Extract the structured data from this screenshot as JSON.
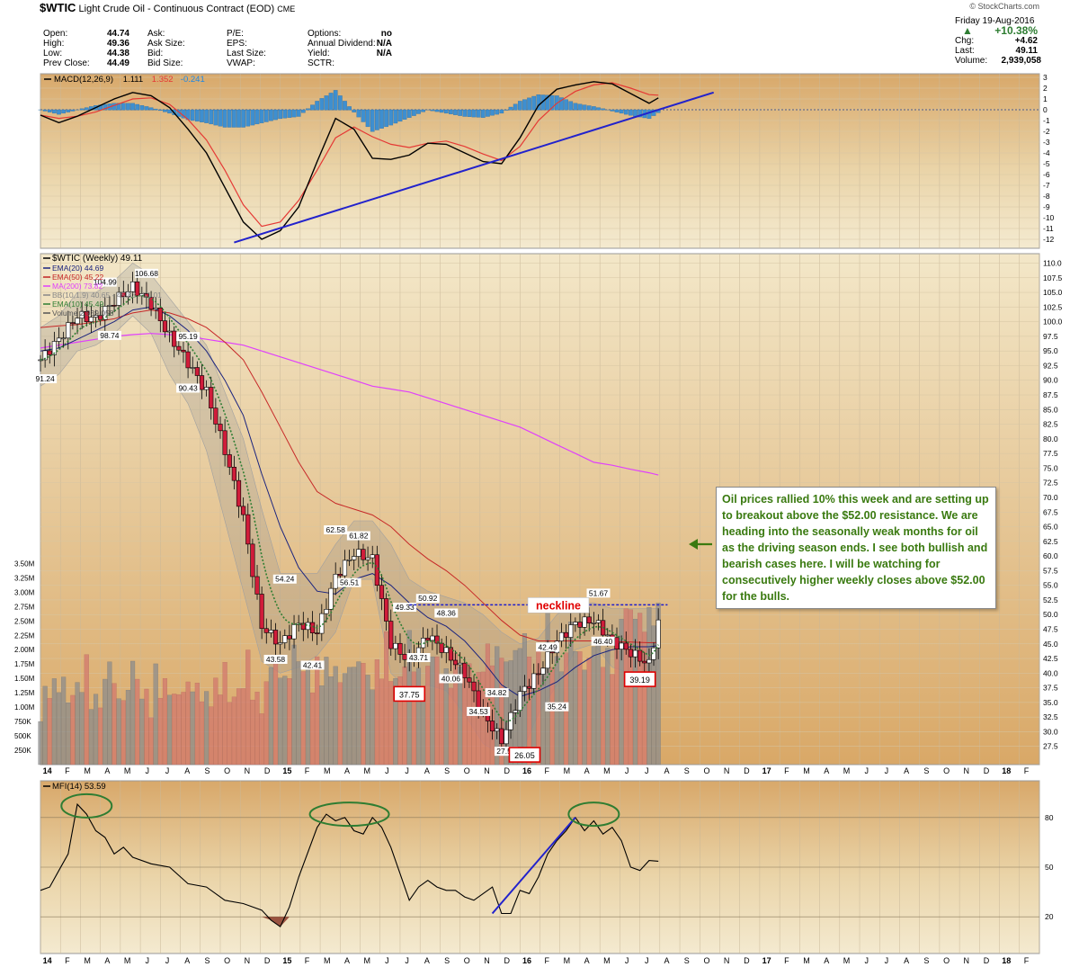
{
  "header": {
    "symbol": "$WTIC",
    "name": "Light Crude Oil - Continuous Contract (EOD)",
    "exchange": "CME",
    "watermark": "© StockCharts.com"
  },
  "quote_left": [
    {
      "label": "Open:",
      "value": "44.74"
    },
    {
      "label": "High:",
      "value": "49.36"
    },
    {
      "label": "Low:",
      "value": "44.38"
    },
    {
      "label": "Prev Close:",
      "value": "44.49"
    }
  ],
  "quote_mid": [
    {
      "label": "Ask:",
      "value": ""
    },
    {
      "label": "Ask Size:",
      "value": ""
    },
    {
      "label": "Bid:",
      "value": ""
    },
    {
      "label": "Bid Size:",
      "value": ""
    }
  ],
  "quote_mid2": [
    {
      "label": "P/E:",
      "value": ""
    },
    {
      "label": "EPS:",
      "value": ""
    },
    {
      "label": "Last Size:",
      "value": ""
    },
    {
      "label": "VWAP:",
      "value": ""
    }
  ],
  "quote_right": [
    {
      "label": "Options:",
      "value": "no"
    },
    {
      "label": "Annual Dividend:",
      "value": "N/A"
    },
    {
      "label": "Yield:",
      "value": "N/A"
    },
    {
      "label": "SCTR:",
      "value": ""
    }
  ],
  "summary": {
    "date": "Friday 19-Aug-2016",
    "change_pct": "+10.38%",
    "chg_label": "Chg:",
    "chg": "+4.62",
    "last_label": "Last:",
    "last": "49.11",
    "volume_label": "Volume:",
    "volume": "2,939,058",
    "up_color": "#2e7d32"
  },
  "annotation": "Oil prices rallied 10% this week and are setting up to breakout above the $52.00 resistance. We are heading into the seasonally weak months for oil as the driving season ends. I see both bullish and bearish cases here. I will be watching for consecutively higher weekly closes above $52.00 for the bulls.",
  "chart_data": [
    {
      "type": "line",
      "panel": "MACD",
      "legend": [
        {
          "text": "MACD(12,26,9)",
          "color": "#000000"
        },
        {
          "text": "1.111",
          "color": "#000000"
        },
        {
          "text": "1.352",
          "color": "#e53935"
        },
        {
          "text": "-0.241",
          "color": "#1e88e5"
        }
      ],
      "ylim": [
        -12.5,
        3
      ],
      "yticks": [
        3,
        2,
        1,
        0,
        -1,
        -2,
        -3,
        -4,
        -5,
        -6,
        -7,
        -8,
        -9,
        -10,
        -11,
        -12
      ],
      "x_weeks": [
        0,
        4,
        8,
        12,
        16,
        20,
        24,
        28,
        32,
        36,
        40,
        44,
        48,
        52,
        56,
        60,
        64,
        68,
        72,
        76,
        80,
        84,
        88,
        92,
        96,
        100,
        104,
        108,
        112,
        116,
        120,
        124,
        128,
        132,
        134
      ],
      "macd": [
        -0.5,
        -1.2,
        -0.6,
        0.2,
        1,
        1.6,
        1.3,
        0.2,
        -1.8,
        -4,
        -7.2,
        -10.4,
        -12,
        -11.2,
        -9,
        -4.8,
        -0.8,
        -1.8,
        -4.5,
        -4.6,
        -4.2,
        -3.1,
        -3.2,
        -4,
        -4.8,
        -5,
        -2.6,
        0.4,
        1.9,
        2.3,
        2.6,
        2.4,
        1.5,
        0.6,
        1.1
      ],
      "signal": [
        -0.5,
        -0.8,
        -0.6,
        -0.2,
        0.4,
        1,
        1.1,
        0.5,
        -0.9,
        -2.8,
        -5.6,
        -8.8,
        -10.8,
        -10.4,
        -8.4,
        -5.6,
        -2.6,
        -1.6,
        -2.5,
        -3.2,
        -3.5,
        -3.1,
        -2.9,
        -3.4,
        -4.1,
        -4.7,
        -3.4,
        -1,
        0.6,
        1.7,
        2.3,
        2.5,
        2,
        1.4,
        1.35
      ],
      "trendline": [
        [
          42,
          -12.3
        ],
        [
          116,
          0.3
        ]
      ],
      "trendline_ext": [
        [
          116,
          0.3
        ],
        [
          146,
          1.6
        ]
      ]
    },
    {
      "type": "candlestick",
      "panel": "price",
      "legend": [
        {
          "text": "$WTIC (Weekly) 49.11",
          "color": "#000000"
        },
        {
          "text": "EMA(20) 44.69",
          "color": "#1a237e"
        },
        {
          "text": "EMA(50) 45.22",
          "color": "#c62828"
        },
        {
          "text": "MA(200) 73.82",
          "color": "#e040fb"
        },
        {
          "text": "BB(10,1.9) 40.65 - 45.83 - 51.01",
          "color": "#888888"
        },
        {
          "text": "EMA(10) 45.49",
          "color": "#2e7d32"
        },
        {
          "text": "Volume 2,939,058",
          "color": "#555555"
        }
      ],
      "ylim": [
        25,
        111
      ],
      "yticks": [
        "110.0",
        "107.5",
        "105.0",
        "102.5",
        "100.0",
        "97.5",
        "95.0",
        "92.5",
        "90.0",
        "87.5",
        "85.0",
        "82.5",
        "80.0",
        "77.5",
        "75.0",
        "72.5",
        "70.0",
        "67.5",
        "65.0",
        "62.5",
        "60.0",
        "57.5",
        "55.0",
        "52.5",
        "50.0",
        "47.5",
        "45.0",
        "42.5",
        "40.0",
        "37.5",
        "35.0",
        "32.5",
        "30.0",
        "27.5"
      ],
      "x_months": [
        "14",
        "F",
        "M",
        "A",
        "M",
        "J",
        "J",
        "A",
        "S",
        "O",
        "N",
        "D",
        "15",
        "F",
        "M",
        "A",
        "M",
        "J",
        "J",
        "A",
        "S",
        "O",
        "N",
        "D",
        "16",
        "F",
        "M",
        "A",
        "M",
        "J",
        "J",
        "A",
        "S",
        "O",
        "N",
        "D",
        "17",
        "F",
        "M",
        "A",
        "M",
        "J",
        "J",
        "A",
        "S",
        "O",
        "N",
        "D",
        "18",
        "F"
      ],
      "weeks_per_month": 4.333,
      "path_x": [
        0,
        4,
        8,
        12,
        16,
        20,
        24,
        28,
        32,
        36,
        40,
        44,
        48,
        52,
        56,
        60,
        64,
        68,
        72,
        76,
        80,
        84,
        88,
        92,
        96,
        100,
        104,
        108,
        112,
        116,
        120,
        124,
        128,
        132,
        134
      ],
      "path_close": [
        93.5,
        97,
        101,
        100.5,
        103.5,
        106,
        103,
        97.5,
        93,
        88,
        78,
        66.5,
        48,
        45,
        48.5,
        47,
        56.5,
        60.5,
        59.5,
        45,
        42,
        46.5,
        43.5,
        40,
        33,
        28.5,
        36.5,
        40,
        45.5,
        48.5,
        49,
        45.5,
        43.5,
        41.5,
        48.8
      ],
      "ema20": [
        95,
        95.5,
        97,
        98.5,
        100,
        102,
        102.5,
        101,
        98.5,
        95,
        90,
        84,
        74,
        65,
        58,
        54,
        53.5,
        56,
        57,
        55,
        52,
        49.5,
        48,
        45.5,
        42,
        38,
        36,
        37,
        38.5,
        41,
        43,
        44,
        44.5,
        44.5,
        44.69
      ],
      "ema50": [
        99,
        99.3,
        99.5,
        100,
        100.5,
        101.5,
        102,
        101.5,
        100.5,
        99,
        96.5,
        93.5,
        88,
        82,
        76,
        71,
        69,
        68,
        67,
        65,
        62,
        59.5,
        57.5,
        55,
        52,
        49,
        46.5,
        45.5,
        45.5,
        45.5,
        45.5,
        45.4,
        45.3,
        45.2,
        45.22
      ],
      "ma200": [
        95.5,
        96,
        96.5,
        97,
        97.5,
        97.8,
        98,
        97.8,
        97.5,
        97,
        96.5,
        96,
        95,
        94,
        93,
        92,
        91,
        90,
        89,
        88.5,
        88,
        87,
        86,
        85,
        84,
        83,
        82,
        80.5,
        79,
        77.5,
        76,
        75.5,
        74.8,
        74.2,
        73.82
      ],
      "bb_upper": [
        99,
        101,
        105,
        105,
        107,
        110,
        108,
        104,
        100,
        96,
        88,
        80,
        68,
        57,
        57,
        57,
        62,
        66,
        66,
        62,
        56,
        54,
        53,
        52,
        50,
        47,
        45,
        46,
        50,
        52,
        52,
        51,
        51,
        51,
        51.01
      ],
      "bb_lower": [
        89,
        91,
        95,
        96,
        98,
        101,
        98,
        91,
        86,
        78,
        66,
        54,
        42,
        40,
        41,
        43,
        47,
        56,
        56,
        40,
        37,
        38,
        37,
        33,
        28,
        26,
        26,
        33,
        38,
        44,
        45,
        41,
        40,
        40,
        40.65
      ],
      "labels": [
        {
          "text": "91.24",
          "week": 1,
          "price": 89.8
        },
        {
          "text": "98.74",
          "week": 15,
          "price": 97.2
        },
        {
          "text": "104.99",
          "week": 14,
          "price": 106.3
        },
        {
          "text": "106.68",
          "week": 23,
          "price": 107.8
        },
        {
          "text": "95.19",
          "week": 32,
          "price": 97.0
        },
        {
          "text": "90.43",
          "week": 32,
          "price": 88.2
        },
        {
          "text": "54.24",
          "week": 53,
          "price": 55.6
        },
        {
          "text": "43.58",
          "week": 51,
          "price": 41.9
        },
        {
          "text": "42.41",
          "week": 59,
          "price": 40.9
        },
        {
          "text": "62.58",
          "week": 64,
          "price": 64.0
        },
        {
          "text": "61.82",
          "week": 69,
          "price": 63.0
        },
        {
          "text": "56.51",
          "week": 67,
          "price": 55.0
        },
        {
          "text": "49.33",
          "week": 79,
          "price": 50.8
        },
        {
          "text": "50.92",
          "week": 84,
          "price": 52.3
        },
        {
          "text": "48.36",
          "week": 88,
          "price": 49.8
        },
        {
          "text": "43.71",
          "week": 82,
          "price": 42.2
        },
        {
          "text": "40.06",
          "week": 89,
          "price": 38.6
        },
        {
          "text": "34.53",
          "week": 95,
          "price": 33.0
        },
        {
          "text": "34.82",
          "week": 99,
          "price": 36.2
        },
        {
          "text": "27.56",
          "week": 101,
          "price": 26.2
        },
        {
          "text": "42.49",
          "week": 110,
          "price": 44.0
        },
        {
          "text": "35.24",
          "week": 112,
          "price": 33.8
        },
        {
          "text": "51.67",
          "week": 121,
          "price": 53.2
        },
        {
          "text": "46.40",
          "week": 122,
          "price": 45.0
        }
      ],
      "boxed_labels": [
        {
          "text": "37.75",
          "week": 80,
          "price": 36.0
        },
        {
          "text": "26.05",
          "week": 105,
          "price": 25.6
        },
        {
          "text": "39.19",
          "week": 130,
          "price": 38.5
        }
      ],
      "neckline_label": "neckline",
      "neckline_price": 51.67,
      "neckline_weeks": [
        80,
        136
      ],
      "volume_ylim": [
        0,
        3.6
      ],
      "volume_ticks": [
        "3.50M",
        "3.25M",
        "3.00M",
        "2.75M",
        "2.50M",
        "2.25M",
        "2.00M",
        "1.75M",
        "1.50M",
        "1.25M",
        "1.00M",
        "750K",
        "500K",
        "250K"
      ]
    },
    {
      "type": "line",
      "panel": "MFI",
      "legend": [
        {
          "text": "MFI(14) 53.59",
          "color": "#000000"
        }
      ],
      "ylim": [
        0,
        100
      ],
      "yticks": [
        80,
        50,
        20
      ],
      "x_weeks": [
        0,
        2,
        4,
        6,
        8,
        10,
        12,
        14,
        16,
        18,
        20,
        24,
        28,
        32,
        36,
        40,
        44,
        48,
        50,
        52,
        54,
        56,
        60,
        62,
        64,
        66,
        68,
        70,
        72,
        74,
        76,
        78,
        80,
        82,
        84,
        86,
        88,
        90,
        92,
        94,
        96,
        98,
        100,
        102,
        104,
        106,
        108,
        110,
        112,
        114,
        116,
        118,
        120,
        122,
        124,
        126,
        128,
        130,
        132,
        134
      ],
      "mfi": [
        36,
        38,
        48,
        58,
        88,
        82,
        72,
        68,
        58,
        62,
        56,
        52,
        50,
        40,
        38,
        30,
        28,
        24,
        18,
        14,
        26,
        44,
        74,
        82,
        78,
        80,
        72,
        70,
        80,
        74,
        62,
        46,
        30,
        38,
        42,
        38,
        36,
        36,
        32,
        30,
        34,
        38,
        22,
        22,
        36,
        34,
        44,
        58,
        66,
        72,
        80,
        72,
        78,
        70,
        74,
        66,
        50,
        48,
        54,
        53.59
      ],
      "trendline": [
        [
          98,
          22
        ],
        [
          116,
          80
        ]
      ],
      "ellipses": [
        {
          "week": 10,
          "value": 87
        },
        {
          "week": 67,
          "value": 82
        },
        {
          "week": 120,
          "value": 82
        }
      ]
    }
  ]
}
